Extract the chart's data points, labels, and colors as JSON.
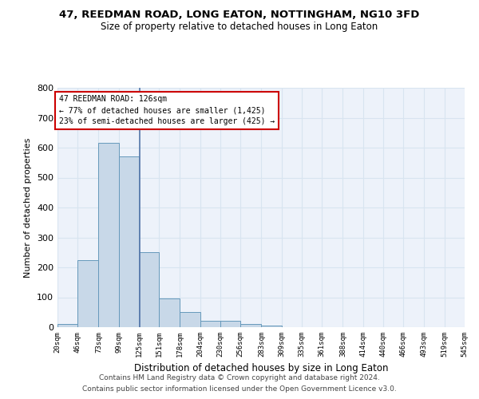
{
  "title": "47, REEDMAN ROAD, LONG EATON, NOTTINGHAM, NG10 3FD",
  "subtitle": "Size of property relative to detached houses in Long Eaton",
  "xlabel": "Distribution of detached houses by size in Long Eaton",
  "ylabel": "Number of detached properties",
  "bin_edges": [
    20,
    46,
    73,
    99,
    125,
    151,
    178,
    204,
    230,
    256,
    283,
    309,
    335,
    361,
    388,
    414,
    440,
    466,
    493,
    519,
    545
  ],
  "bar_heights": [
    10,
    225,
    615,
    570,
    250,
    95,
    50,
    22,
    22,
    12,
    5,
    0,
    0,
    0,
    0,
    0,
    0,
    0,
    0,
    0
  ],
  "bar_color": "#c8d8e8",
  "bar_edge_color": "#6699bb",
  "property_size": 126,
  "annotation_title": "47 REEDMAN ROAD: 126sqm",
  "annotation_line1": "← 77% of detached houses are smaller (1,425)",
  "annotation_line2": "23% of semi-detached houses are larger (425) →",
  "annotation_box_color": "#cc0000",
  "vline_color": "#5577aa",
  "grid_color": "#d8e4f0",
  "background_color": "#edf2fa",
  "ylim": [
    0,
    800
  ],
  "yticks": [
    0,
    100,
    200,
    300,
    400,
    500,
    600,
    700,
    800
  ],
  "footer1": "Contains HM Land Registry data © Crown copyright and database right 2024.",
  "footer2": "Contains public sector information licensed under the Open Government Licence v3.0."
}
